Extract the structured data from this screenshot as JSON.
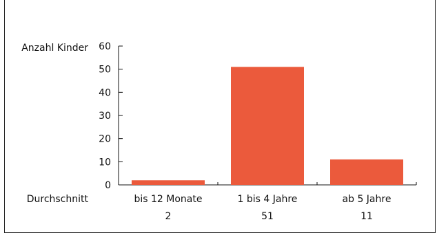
{
  "chart_data": {
    "type": "bar",
    "ylabel": "Anzahl Kinder",
    "row_label": "Durchschnitt",
    "categories": [
      "bis 12 Monate",
      "1 bis 4 Jahre",
      "ab 5 Jahre"
    ],
    "values": [
      2,
      51,
      11
    ],
    "value_labels": [
      "2",
      "51",
      "11"
    ],
    "ylim": [
      0,
      60
    ],
    "yticks": [
      0,
      10,
      20,
      30,
      40,
      50,
      60
    ],
    "bar_color": "#eb5a3c",
    "grid": false
  }
}
